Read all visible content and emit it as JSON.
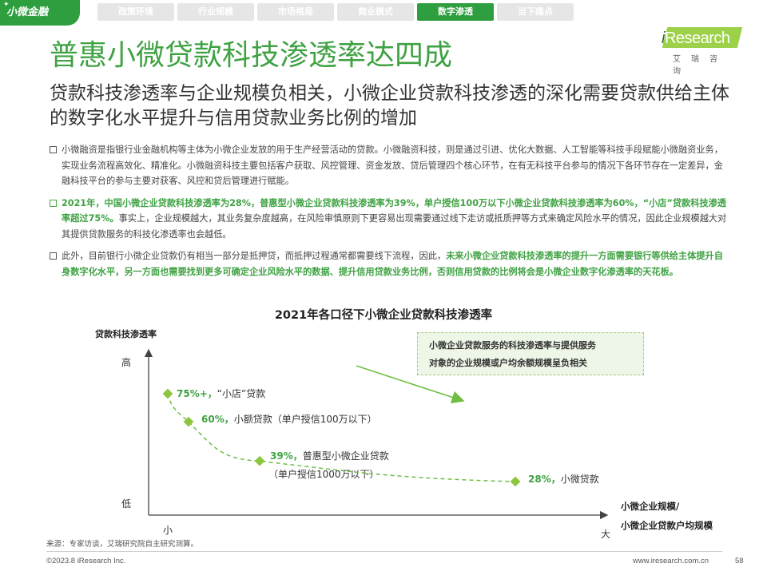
{
  "header": {
    "section_tag": "小微金融",
    "tabs": [
      {
        "label": "政策环境",
        "active": false
      },
      {
        "label": "行业规模",
        "active": false
      },
      {
        "label": "市场格局",
        "active": false
      },
      {
        "label": "商业模式",
        "active": false
      },
      {
        "label": "数字渗透",
        "active": true
      },
      {
        "label": "当下痛点",
        "active": false
      }
    ]
  },
  "logo": {
    "text_i": "i",
    "text_rest": "Research",
    "cn": "艾瑞咨询"
  },
  "title": "普惠小微贷款科技渗透率达四成",
  "subtitle": "贷款科技渗透率与企业规模负相关，小微企业贷款科技渗透的深化需要贷款供给主体的数字化水平提升与信用贷款业务比例的增加",
  "bullets": [
    {
      "parts": [
        {
          "text": "小微融资是指银行业金融机构等主体为小微企业发放的用于生产经营活动的贷款。小微融资科技，则是通过引进、优化大数据、人工智能等科技手段赋能小微融资业务，实现业务流程高效化、精准化。小微融资科技主要包括客户获取、风控管理、资金发放、贷后管理四个核心环节，在有无科技平台参与的情况下各环节存在一定差异，金融科技平台的参与主要对获客、风控和贷后管理进行赋能。",
          "hl": false
        }
      ]
    },
    {
      "parts": [
        {
          "text": "2021年，中国小微企业贷款科技渗透率为28%，普惠型小微企业贷款科技渗透率为39%，单户授信100万以下小微企业贷款科技渗透率为60%，“小店”贷款科技渗透率超过75%。",
          "hl": true
        },
        {
          "text": "事实上，企业规模越大，其业务复杂度越高，在风险审慎原则下更容易出现需要通过线下走访或抵质押等方式来确定风险水平的情况，因此企业规模越大对其提供贷款服务的科技化渗透率也会越低。",
          "hl": false
        }
      ]
    },
    {
      "parts": [
        {
          "text": "此外，目前银行小微企业贷款仍有相当一部分是抵押贷，而抵押过程通常都需要线下流程，因此，",
          "hl": false
        },
        {
          "text": "未来小微企业贷款科技渗透率的提升一方面需要银行等供给主体提升自身数字化水平，另一方面也需要找到更多可确定企业风险水平的数据、提升信用贷款业务比例，否则信用贷款的比例将会是小微企业数字化渗透率的天花板。",
          "hl": true
        }
      ]
    }
  ],
  "chart_data": {
    "type": "scatter",
    "title": "2021年各口径下小微企业贷款科技渗透率",
    "ylabel": "贷款科技渗透率",
    "xlabel": [
      "小微企业规模/",
      "小微企业贷款户均规模"
    ],
    "y_ticks": {
      "high": "高",
      "low": "低"
    },
    "x_ticks": {
      "small": "小",
      "large": "大"
    },
    "points": [
      {
        "value": 75,
        "pct_label": "75%+，",
        "name": "“小店”贷款",
        "note": ""
      },
      {
        "value": 60,
        "pct_label": "60%，",
        "name": "小额贷款（单户授信100万以下）",
        "note": ""
      },
      {
        "value": 39,
        "pct_label": "39%，",
        "name": "普惠型小微企业贷款",
        "note": "（单户授信1000万以下）"
      },
      {
        "value": 28,
        "pct_label": "28%，",
        "name": "小微贷款",
        "note": ""
      }
    ],
    "callout": [
      "小微企业贷款服务的科技渗透率与提供服务",
      "对象的企业规模或户均余额规模呈负相关"
    ],
    "colors": {
      "accent": "#3fa243",
      "point": "#8cc63f",
      "trend": "#6fbe44",
      "axis": "#444444"
    }
  },
  "footer": {
    "source": "来源：专家访谈，艾瑞研究院自主研究测算。",
    "copyright": "©2023.8 iResearch Inc.",
    "website": "www.iresearch.com.cn",
    "page": "58"
  }
}
